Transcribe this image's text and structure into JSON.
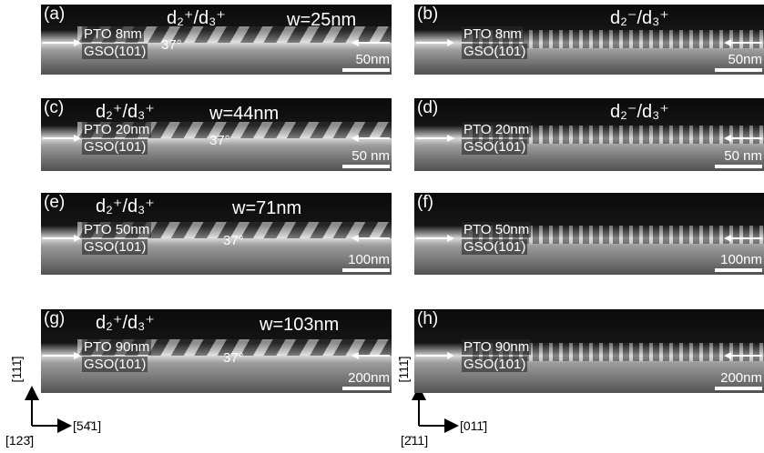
{
  "panels": [
    {
      "letter": "(a)",
      "pto": "PTO 8nm",
      "gso": "GSO(101)",
      "scale": "50nm",
      "domain": "d₂⁺/d₃⁺",
      "width": "w=25nm",
      "angle": "37°"
    },
    {
      "letter": "(b)",
      "pto": "PTO 8nm",
      "gso": "GSO(101)",
      "scale": "50nm",
      "domain": "d₂⁻/d₃⁺"
    },
    {
      "letter": "(c)",
      "pto": "PTO 20nm",
      "gso": "GSO(101)",
      "scale": "50 nm",
      "domain": "d₂⁺/d₃⁺",
      "width": "w=44nm",
      "angle": "37°"
    },
    {
      "letter": "(d)",
      "pto": "PTO 20nm",
      "gso": "GSO(101)",
      "scale": "50 nm",
      "domain": "d₂⁻/d₃⁺"
    },
    {
      "letter": "(e)",
      "pto": "PTO 50nm",
      "gso": "GSO(101)",
      "scale": "100nm",
      "domain": "d₂⁺/d₃⁺",
      "width": "w=71nm",
      "angle": "37°"
    },
    {
      "letter": "(f)",
      "pto": "PTO 50nm",
      "gso": "GSO(101)",
      "scale": "100nm"
    },
    {
      "letter": "(g)",
      "pto": "PTO 90nm",
      "gso": "GSO(101)",
      "scale": "200nm",
      "domain": "d₂⁺/d₃⁺",
      "width": "w=103nm",
      "angle": "37°"
    },
    {
      "letter": "(h)",
      "pto": "PTO 90nm",
      "gso": "GSO(101)",
      "scale": "200nm"
    }
  ],
  "axes": {
    "left": {
      "vertical": "[111̄]",
      "corner": "[123̄]",
      "horizontal": "[54̄1]"
    },
    "right": {
      "vertical": "[111̄]",
      "corner": "[2̄11]",
      "horizontal": "[011̄]"
    }
  }
}
